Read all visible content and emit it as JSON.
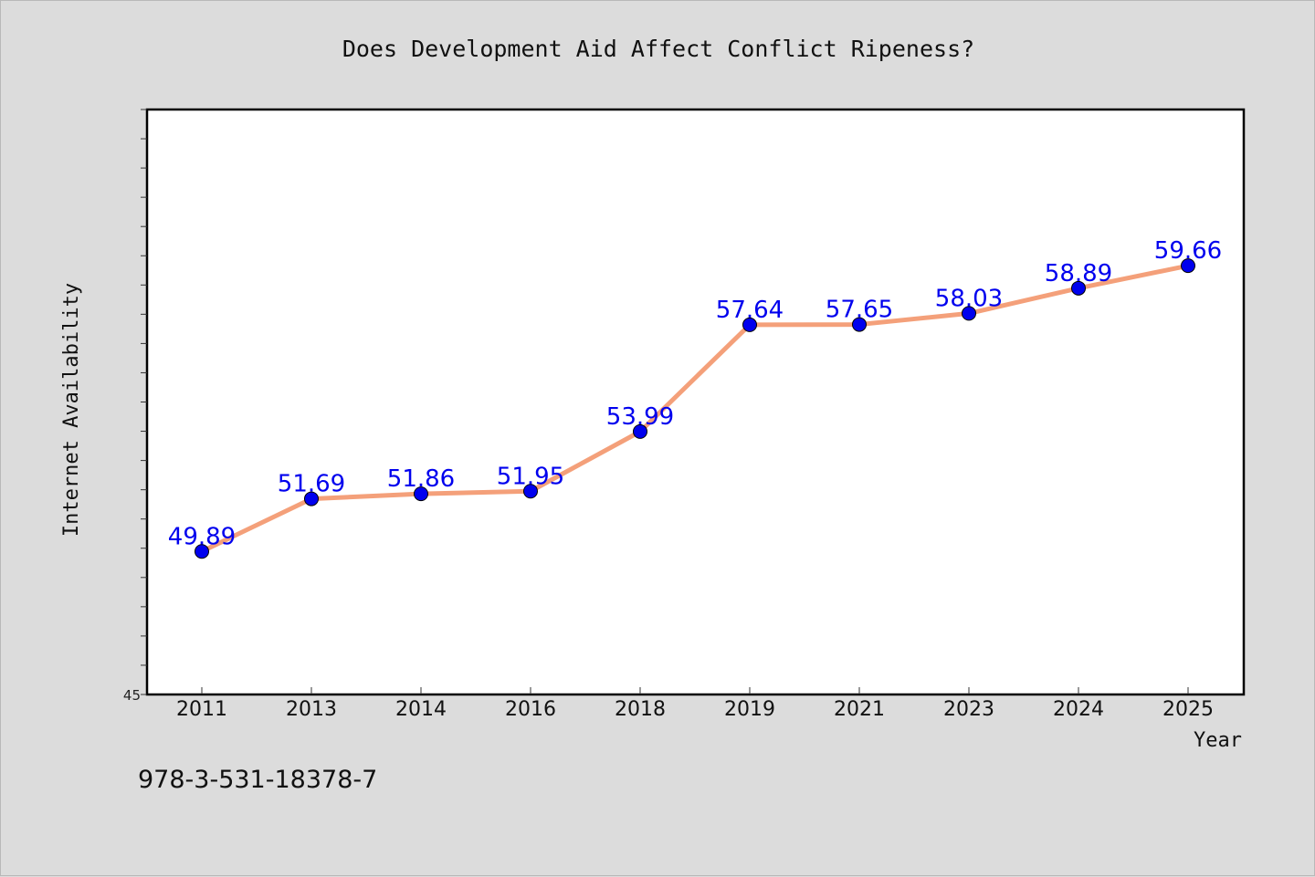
{
  "chart_data": {
    "type": "line",
    "title": "Does Development Aid Affect Conflict Ripeness?",
    "xlabel": "Year",
    "ylabel": "Internet Availability",
    "categories": [
      "2011",
      "2013",
      "2014",
      "2016",
      "2018",
      "2019",
      "2021",
      "2023",
      "2024",
      "2025"
    ],
    "series": [
      {
        "values": [
          49.89,
          51.69,
          51.86,
          51.95,
          53.99,
          57.64,
          57.65,
          58.03,
          58.89,
          59.66
        ],
        "labels": [
          "49.89",
          "51.69",
          "51.86",
          "51.95",
          "53.99",
          "57.64",
          "57.65",
          "58.03",
          "58.89",
          "59.66"
        ],
        "line_color": "#f4a07a",
        "marker_color": "#0000ee"
      }
    ],
    "ylim": [
      45,
      65
    ],
    "y_tick_labels": [
      "45"
    ],
    "grid": false,
    "legend": "none"
  },
  "footer_text": "978-3-531-18378-7",
  "colors": {
    "background": "#dcdcdc",
    "plot_area": "#ffffff",
    "label_color": "#0000ee"
  }
}
